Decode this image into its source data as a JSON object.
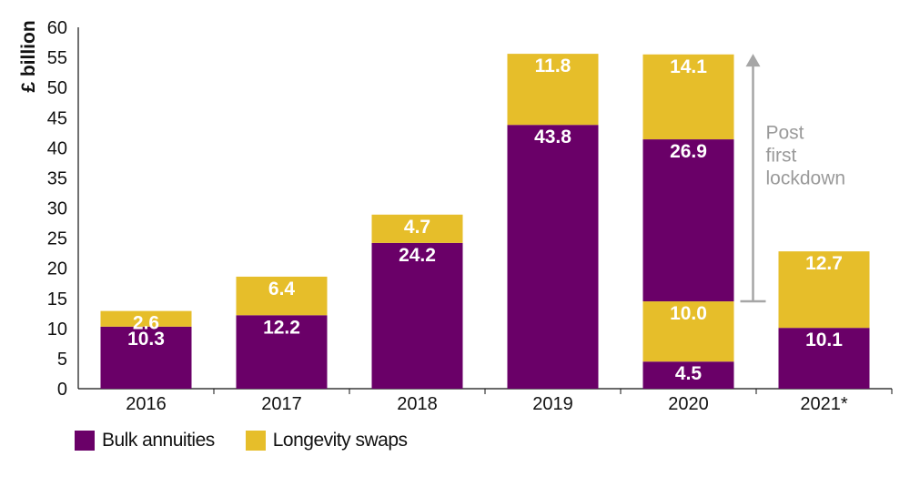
{
  "chart_data": {
    "type": "bar",
    "stacked": true,
    "ylabel": "£ billion",
    "ylim": [
      0,
      60
    ],
    "yticks": [
      0,
      5,
      10,
      15,
      20,
      25,
      30,
      35,
      40,
      45,
      50,
      55,
      60
    ],
    "grid": false,
    "legend_position": "bottom-left",
    "categories": [
      "2016",
      "2017",
      "2018",
      "2019",
      "2020",
      "2021*"
    ],
    "bars": [
      {
        "category": "2016",
        "segments": [
          {
            "series": "Bulk annuities",
            "value": 10.3,
            "label": "10.3"
          },
          {
            "series": "Longevity swaps",
            "value": 2.6,
            "label": "2.6"
          }
        ]
      },
      {
        "category": "2017",
        "segments": [
          {
            "series": "Bulk annuities",
            "value": 12.2,
            "label": "12.2"
          },
          {
            "series": "Longevity swaps",
            "value": 6.4,
            "label": "6.4"
          }
        ]
      },
      {
        "category": "2018",
        "segments": [
          {
            "series": "Bulk annuities",
            "value": 24.2,
            "label": "24.2"
          },
          {
            "series": "Longevity swaps",
            "value": 4.7,
            "label": "4.7"
          }
        ]
      },
      {
        "category": "2019",
        "segments": [
          {
            "series": "Bulk annuities",
            "value": 43.8,
            "label": "43.8"
          },
          {
            "series": "Longevity swaps",
            "value": 11.8,
            "label": "11.8"
          }
        ]
      },
      {
        "category": "2020",
        "segments": [
          {
            "series": "Bulk annuities",
            "value": 4.5,
            "label": "4.5"
          },
          {
            "series": "Longevity swaps",
            "value": 10.0,
            "label": "10.0"
          },
          {
            "series": "Bulk annuities",
            "value": 26.9,
            "label": "26.9"
          },
          {
            "series": "Longevity swaps",
            "value": 14.1,
            "label": "14.1"
          }
        ]
      },
      {
        "category": "2021*",
        "segments": [
          {
            "series": "Bulk annuities",
            "value": 10.1,
            "label": "10.1"
          },
          {
            "series": "Longevity swaps",
            "value": 12.7,
            "label": "12.7"
          }
        ]
      }
    ],
    "series": [
      {
        "name": "Bulk annuities",
        "color": "#6a0068"
      },
      {
        "name": "Longevity swaps",
        "color": "#e6be2a"
      }
    ],
    "annotations": [
      {
        "text_lines": [
          "Post",
          "first",
          "lockdown"
        ],
        "category": "2020",
        "from_value": 14.5,
        "to_value": 55.6,
        "color": "#a6a6a6"
      }
    ]
  },
  "legend": {
    "items": [
      {
        "label": "Bulk annuities",
        "color": "#6a0068"
      },
      {
        "label": "Longevity swaps",
        "color": "#e6be2a"
      }
    ]
  }
}
